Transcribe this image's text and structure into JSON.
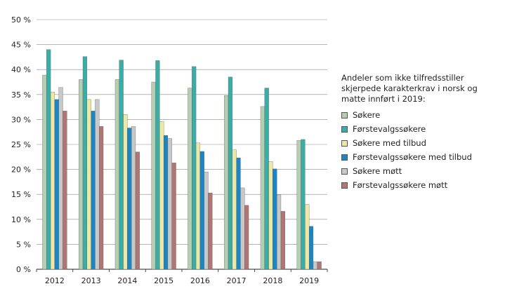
{
  "chart_data": {
    "type": "bar",
    "categories": [
      "2012",
      "2013",
      "2014",
      "2015",
      "2016",
      "2017",
      "2018",
      "2019"
    ],
    "ylim": [
      0,
      50
    ],
    "yticks": [
      "0 %",
      "5 %",
      "10 %",
      "15 %",
      "20 %",
      "25 %",
      "30 %",
      "35 %",
      "40 %",
      "45 %",
      "50 %"
    ],
    "grid": true,
    "legend_position": "right",
    "legend_title": "Andeler som ikke tilfredsstiller skjerpede karakterkrav  i norsk og matte innført i 2019:",
    "series": [
      {
        "name": "Søkere",
        "color": "#b5ceb2",
        "values": [
          38.9,
          38.0,
          38.0,
          37.5,
          36.3,
          34.8,
          32.6,
          25.8
        ]
      },
      {
        "name": "Førstevalgssøkere",
        "color": "#3aaea6",
        "values": [
          44.0,
          42.6,
          41.9,
          41.8,
          40.6,
          38.5,
          36.3,
          26.0
        ]
      },
      {
        "name": "Søkere med tilbud",
        "color": "#ece9a8",
        "values": [
          35.5,
          34.0,
          31.0,
          29.6,
          25.3,
          23.9,
          21.6,
          13.0
        ]
      },
      {
        "name": "Førstevalgssøkere med tilbud",
        "color": "#1b86c5",
        "values": [
          34.0,
          31.7,
          28.3,
          26.8,
          23.6,
          22.3,
          20.1,
          8.6
        ]
      },
      {
        "name": "Søkere møtt",
        "color": "#c8c8c8",
        "values": [
          36.4,
          34.0,
          28.6,
          26.2,
          19.5,
          16.3,
          14.9,
          1.5
        ]
      },
      {
        "name": "Førstevalgssøkere møtt",
        "color": "#b07673",
        "values": [
          31.7,
          28.6,
          23.5,
          21.3,
          15.3,
          12.8,
          11.6,
          1.5
        ]
      }
    ]
  }
}
